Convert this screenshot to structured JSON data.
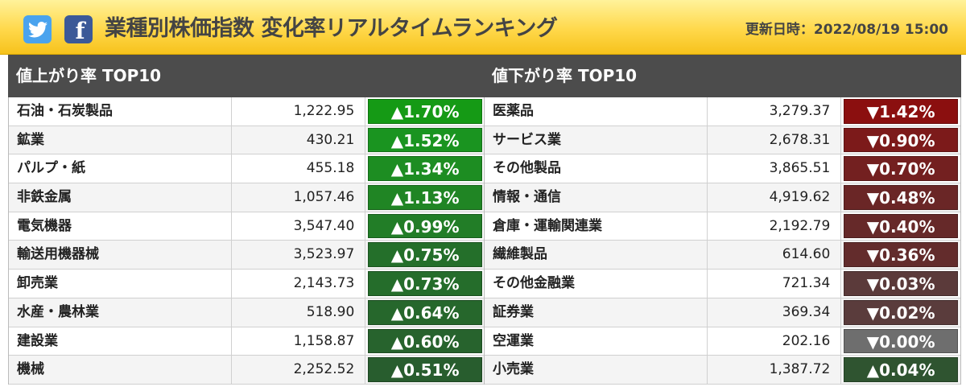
{
  "header": {
    "title": "業種別株価指数 変化率リアルタイムランキング",
    "updated": "更新日時：2022/08/19 15:00",
    "icons": [
      "twitter-icon",
      "facebook-icon"
    ],
    "facebook_letter": "f"
  },
  "up": {
    "title": "値上がり率 TOP10",
    "rows": [
      {
        "name": "石油・石炭製品",
        "value": "1,222.95",
        "change": "▲1.70%",
        "color": "#159a15"
      },
      {
        "name": "鉱業",
        "value": "430.21",
        "change": "▲1.52%",
        "color": "#1a9420"
      },
      {
        "name": "パルプ・紙",
        "value": "455.18",
        "change": "▲1.34%",
        "color": "#1d8d22"
      },
      {
        "name": "非鉄金属",
        "value": "1,057.46",
        "change": "▲1.13%",
        "color": "#208524"
      },
      {
        "name": "電気機器",
        "value": "3,547.40",
        "change": "▲0.99%",
        "color": "#227d27"
      },
      {
        "name": "輸送用機器械",
        "value": "3,523.97",
        "change": "▲0.75%",
        "color": "#246f2a"
      },
      {
        "name": "卸売業",
        "value": "2,143.73",
        "change": "▲0.73%",
        "color": "#256d2b"
      },
      {
        "name": "水産・農林業",
        "value": "518.90",
        "change": "▲0.64%",
        "color": "#26672c"
      },
      {
        "name": "建設業",
        "value": "1,158.87",
        "change": "▲0.60%",
        "color": "#27632d"
      },
      {
        "name": "機械",
        "value": "2,252.52",
        "change": "▲0.51%",
        "color": "#285d2e"
      }
    ]
  },
  "down": {
    "title": "値下がり率 TOP10",
    "rows": [
      {
        "name": "医薬品",
        "value": "3,279.37",
        "change": "▼1.42%",
        "color": "#8b0f0f"
      },
      {
        "name": "サービス業",
        "value": "2,678.31",
        "change": "▼0.90%",
        "color": "#7c1a1a"
      },
      {
        "name": "その他製品",
        "value": "3,865.51",
        "change": "▼0.70%",
        "color": "#732020"
      },
      {
        "name": "情報・通信",
        "value": "4,919.62",
        "change": "▼0.48%",
        "color": "#6a2626"
      },
      {
        "name": "倉庫・運輸関連業",
        "value": "2,192.79",
        "change": "▼0.40%",
        "color": "#662929"
      },
      {
        "name": "繊維製品",
        "value": "614.60",
        "change": "▼0.36%",
        "color": "#632c2c"
      },
      {
        "name": "その他金融業",
        "value": "721.34",
        "change": "▼0.03%",
        "color": "#5b3a3a"
      },
      {
        "name": "証券業",
        "value": "369.34",
        "change": "▼0.02%",
        "color": "#5a3c3c"
      },
      {
        "name": "空運業",
        "value": "202.16",
        "change": "▼0.00%",
        "color": "#6e6e6e"
      },
      {
        "name": "小売業",
        "value": "1,387.72",
        "change": "▲0.04%",
        "color": "#2f5430"
      }
    ]
  }
}
